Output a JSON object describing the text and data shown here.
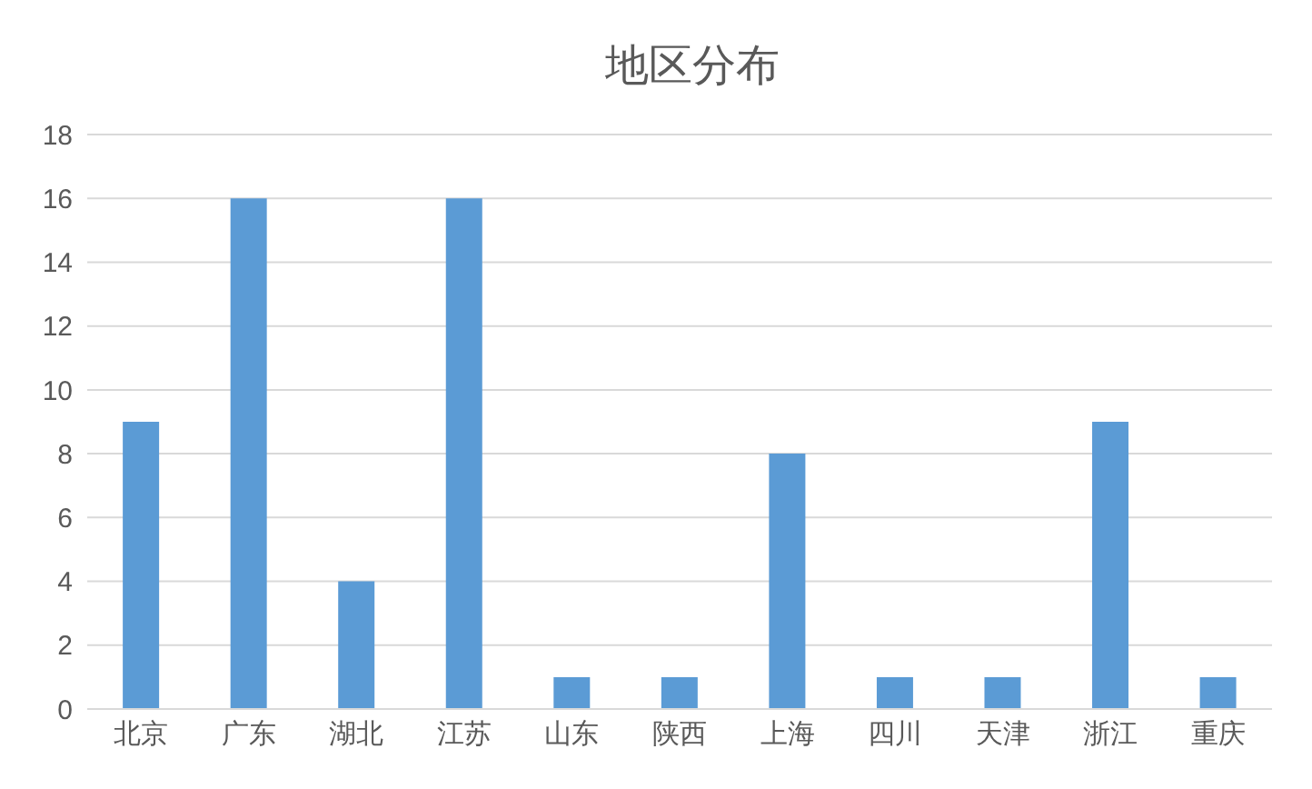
{
  "chart_data": {
    "type": "bar",
    "title": "地区分布",
    "categories": [
      "北京",
      "广东",
      "湖北",
      "江苏",
      "山东",
      "陕西",
      "上海",
      "四川",
      "天津",
      "浙江",
      "重庆"
    ],
    "values": [
      9,
      16,
      4,
      16,
      1,
      1,
      8,
      1,
      1,
      9,
      1
    ],
    "color": "#5b9bd5",
    "ylim": [
      0,
      18
    ],
    "yticks": [
      0,
      2,
      4,
      6,
      8,
      10,
      12,
      14,
      16,
      18
    ],
    "grid": "y"
  }
}
